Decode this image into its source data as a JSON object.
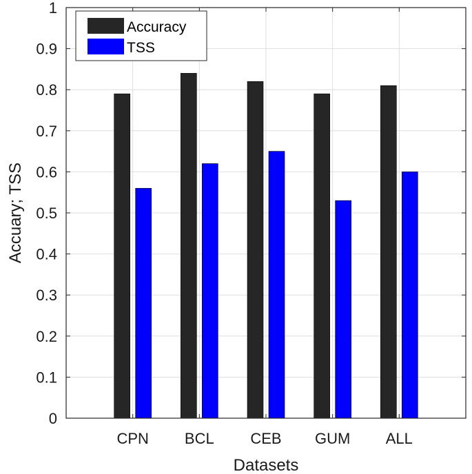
{
  "chart_data": {
    "type": "bar",
    "categories": [
      "CPN",
      "BCL",
      "CEB",
      "GUM",
      "ALL"
    ],
    "series": [
      {
        "name": "Accuracy",
        "color": "#262626",
        "values": [
          0.79,
          0.84,
          0.82,
          0.79,
          0.81
        ]
      },
      {
        "name": "TSS",
        "color": "#0000ff",
        "values": [
          0.56,
          0.62,
          0.65,
          0.53,
          0.6
        ]
      }
    ],
    "yticks": [
      "0",
      "0.1",
      "0.2",
      "0.3",
      "0.4",
      "0.5",
      "0.6",
      "0.7",
      "0.8",
      "0.9",
      "1"
    ],
    "xlabel": "Datasets",
    "ylabel": "Accuary; TSS",
    "ylim": [
      0,
      1
    ],
    "grid": true,
    "legend_position": "top-left"
  }
}
